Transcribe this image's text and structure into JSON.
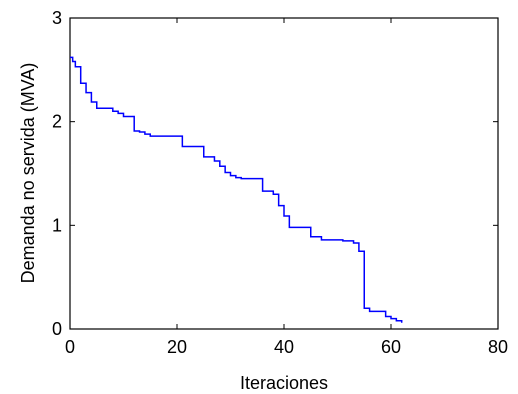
{
  "chart_data": {
    "type": "line",
    "title": "",
    "xlabel": "Iteraciones",
    "ylabel": "Demanda no servida (MVA)",
    "xlim": [
      0,
      80
    ],
    "ylim": [
      0,
      3
    ],
    "xticks": [
      0,
      20,
      40,
      60,
      80
    ],
    "yticks": [
      0,
      1,
      2,
      3
    ],
    "xtick_labels": [
      "0",
      "20",
      "40",
      "60",
      "80"
    ],
    "ytick_labels": [
      "0",
      "1",
      "2",
      "3"
    ],
    "grid": false,
    "legend": "none",
    "line_color": "#0000ff",
    "step": true,
    "series": [
      {
        "x": [
          0,
          0.5,
          1,
          2,
          3,
          4,
          5,
          6,
          8,
          9,
          10,
          12,
          13,
          14,
          15,
          20,
          21,
          24,
          25,
          27,
          28,
          29,
          30,
          31,
          32,
          36,
          38,
          39,
          40,
          41,
          43,
          45,
          47,
          51,
          53,
          54,
          55,
          56,
          58,
          59,
          60,
          61,
          62
        ],
        "y": [
          2.62,
          2.58,
          2.53,
          2.37,
          2.28,
          2.19,
          2.13,
          2.13,
          2.1,
          2.08,
          2.05,
          1.91,
          1.9,
          1.88,
          1.86,
          1.86,
          1.76,
          1.76,
          1.66,
          1.62,
          1.57,
          1.51,
          1.48,
          1.46,
          1.45,
          1.33,
          1.3,
          1.19,
          1.09,
          0.98,
          0.98,
          0.89,
          0.86,
          0.85,
          0.83,
          0.75,
          0.2,
          0.17,
          0.17,
          0.12,
          0.1,
          0.08,
          0.06
        ]
      }
    ]
  }
}
